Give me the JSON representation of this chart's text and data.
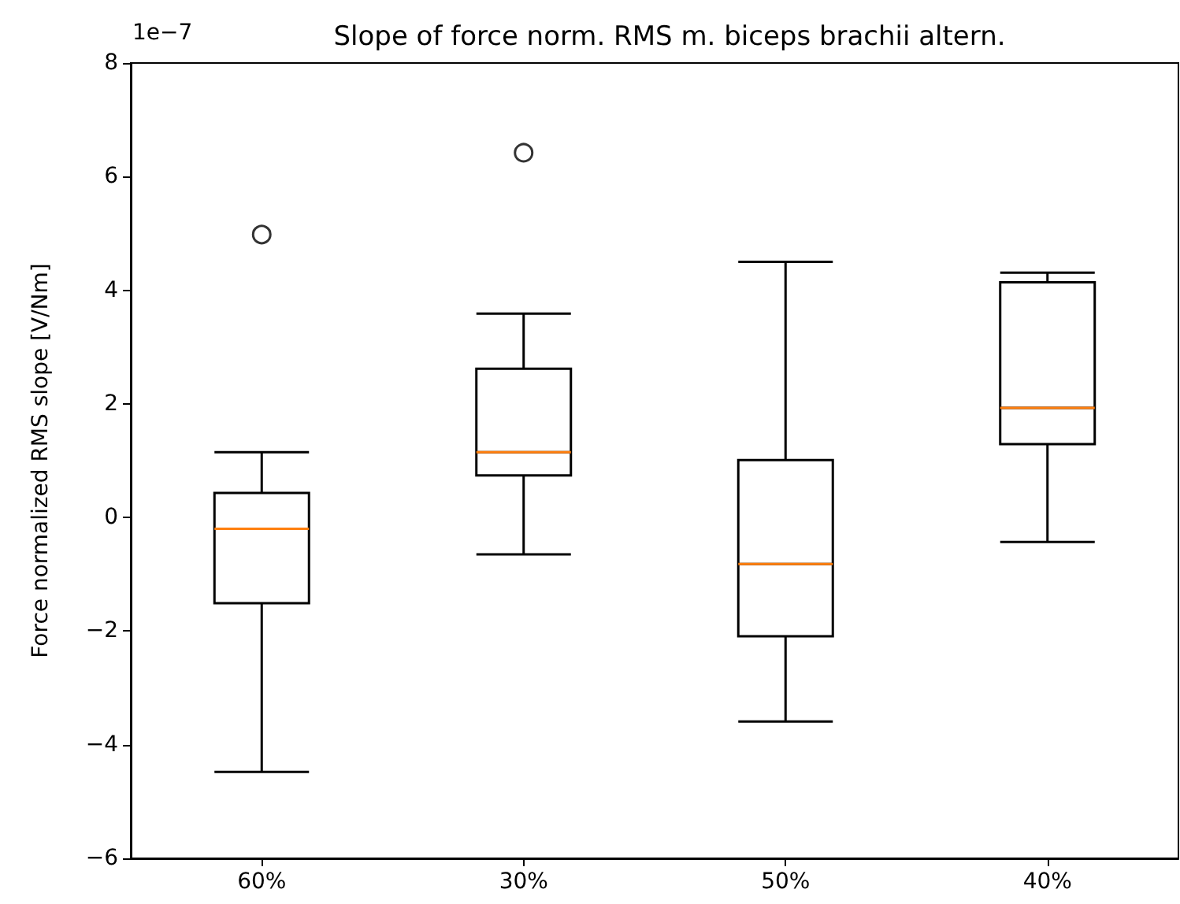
{
  "chart_data": {
    "type": "box",
    "title": "Slope of force norm. RMS m. biceps brachii altern.",
    "ylabel": "Force normalized RMS slope [V/Nm]",
    "annotations": [
      "1e−7"
    ],
    "categories": [
      "60%",
      "30%",
      "50%",
      "40%"
    ],
    "ylim": [
      -6,
      8
    ],
    "yticks": [
      -6,
      -4,
      -2,
      0,
      2,
      4,
      6,
      8
    ],
    "series": [
      {
        "color": "#000000",
        "boxes": [
          {
            "low": -4.48,
            "q1": -1.51,
            "median": -0.2,
            "q3": 0.43,
            "high": 1.15,
            "outliers": [
              4.98
            ]
          },
          {
            "low": -0.65,
            "q1": 0.74,
            "median": 1.15,
            "q3": 2.62,
            "high": 3.59,
            "outliers": [
              6.42
            ]
          },
          {
            "low": -3.59,
            "q1": -2.09,
            "median": -0.82,
            "q3": 1.01,
            "high": 4.5
          },
          {
            "low": -0.43,
            "q1": 1.29,
            "median": 1.93,
            "q3": 4.14,
            "high": 4.31
          }
        ]
      }
    ]
  }
}
